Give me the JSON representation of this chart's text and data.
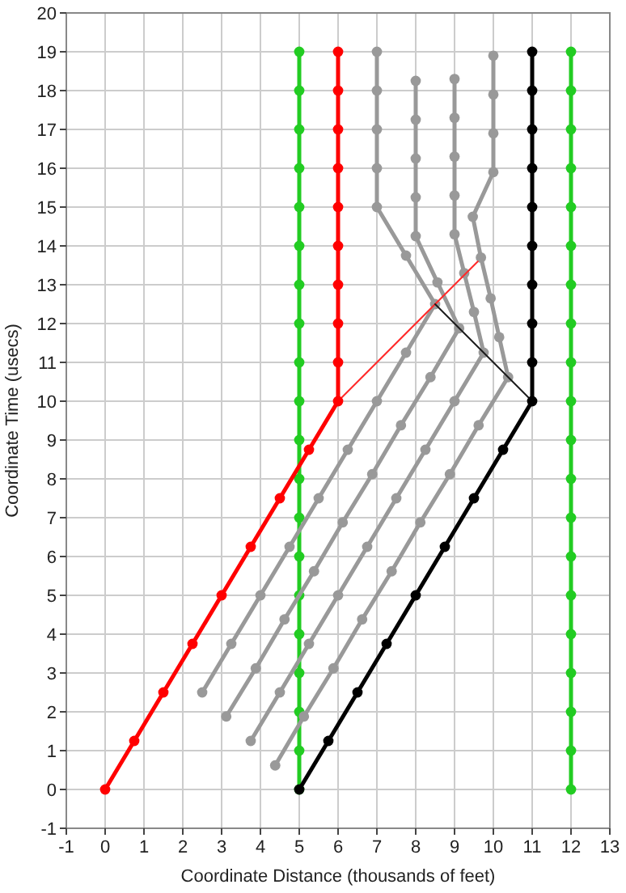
{
  "chart_data": {
    "type": "line",
    "xlabel": "Coordinate Distance (thousands of feet)",
    "ylabel": "Coordinate Time (usecs)",
    "xlim": [
      -1,
      13
    ],
    "ylim": [
      -1,
      20
    ],
    "xticks": [
      -1,
      0,
      1,
      2,
      3,
      4,
      5,
      6,
      7,
      8,
      9,
      10,
      11,
      12,
      13
    ],
    "yticks": [
      -1,
      0,
      1,
      2,
      3,
      4,
      5,
      6,
      7,
      8,
      9,
      10,
      11,
      12,
      13,
      14,
      15,
      16,
      17,
      18,
      19,
      20
    ],
    "grid": true,
    "marker": "circle",
    "line_style": "solid",
    "series": [
      {
        "color": "#22cc22",
        "x": [
          5,
          5,
          5,
          5,
          5,
          5,
          5,
          5,
          5,
          5,
          5,
          5,
          5,
          5,
          5,
          5,
          5,
          5,
          5,
          5
        ],
        "values": [
          0,
          1,
          2,
          3,
          4,
          5,
          6,
          7,
          8,
          9,
          10,
          11,
          12,
          13,
          14,
          15,
          16,
          17,
          18,
          19
        ]
      },
      {
        "color": "#22cc22",
        "x": [
          12,
          12,
          12,
          12,
          12,
          12,
          12,
          12,
          12,
          12,
          12,
          12,
          12,
          12,
          12,
          12,
          12,
          12,
          12,
          12
        ],
        "values": [
          0,
          1,
          2,
          3,
          4,
          5,
          6,
          7,
          8,
          9,
          10,
          11,
          12,
          13,
          14,
          15,
          16,
          17,
          18,
          19
        ]
      },
      {
        "color": "#999999",
        "x": [
          2.5,
          3.25,
          4,
          4.75,
          5.5,
          6.25,
          7,
          7.75,
          8.5,
          7.75,
          7,
          7,
          7,
          7,
          7
        ],
        "values": [
          2.5,
          3.75,
          5,
          6.25,
          7.5,
          8.75,
          10,
          11.25,
          12.5,
          13.75,
          15,
          16,
          17,
          18,
          19
        ]
      },
      {
        "color": "#999999",
        "x": [
          3.12,
          3.88,
          4.62,
          5.38,
          6.12,
          6.88,
          7.62,
          8.38,
          9.12,
          8.56,
          8,
          8,
          8,
          8,
          8
        ],
        "values": [
          1.88,
          3.12,
          4.38,
          5.62,
          6.88,
          8.12,
          9.38,
          10.62,
          11.88,
          13.06,
          14.25,
          15.25,
          16.25,
          17.25,
          18.25
        ]
      },
      {
        "color": "#999999",
        "x": [
          3.75,
          4.5,
          5.25,
          6,
          6.75,
          7.5,
          8.25,
          9,
          9.75,
          9.5,
          9.25,
          9,
          9,
          9,
          9,
          9
        ],
        "values": [
          1.25,
          2.5,
          3.75,
          5,
          6.25,
          7.5,
          8.75,
          10,
          11.25,
          12.3,
          13.3,
          14.3,
          15.3,
          16.3,
          17.3,
          18.3
        ]
      },
      {
        "color": "#999999",
        "x": [
          4.38,
          5.12,
          5.88,
          6.62,
          7.38,
          8.12,
          8.88,
          9.62,
          10.38,
          10.15,
          9.93,
          9.68,
          9.47,
          10,
          10,
          10,
          10
        ],
        "values": [
          0.62,
          1.88,
          3.12,
          4.38,
          5.62,
          6.88,
          8.12,
          9.38,
          10.62,
          11.65,
          12.65,
          13.7,
          14.75,
          15.9,
          16.9,
          17.9,
          18.9
        ]
      },
      {
        "color": "#ff2a2a",
        "marker": "none",
        "x": [
          6,
          9.6
        ],
        "values": [
          10,
          13.6
        ]
      },
      {
        "color": "#1a1a1a",
        "marker": "none",
        "x": [
          11,
          8.5
        ],
        "values": [
          10,
          12.5
        ]
      },
      {
        "color": "#ff0000",
        "x": [
          0,
          0.75,
          1.5,
          2.25,
          3,
          3.75,
          4.5,
          5.25,
          6,
          6,
          6,
          6,
          6,
          6,
          6,
          6,
          6,
          6
        ],
        "values": [
          0,
          1.25,
          2.5,
          3.75,
          5,
          6.25,
          7.5,
          8.75,
          10,
          11,
          12,
          13,
          14,
          15,
          16,
          17,
          18,
          19
        ]
      },
      {
        "color": "#000000",
        "x": [
          5,
          5.75,
          6.5,
          7.25,
          8,
          8.75,
          9.5,
          10.25,
          11,
          11,
          11,
          11,
          11,
          11,
          11,
          11,
          11,
          11
        ],
        "values": [
          0,
          1.25,
          2.5,
          3.75,
          5,
          6.25,
          7.5,
          8.75,
          10,
          11,
          12,
          13,
          14,
          15,
          16,
          17,
          18,
          19
        ]
      }
    ]
  }
}
